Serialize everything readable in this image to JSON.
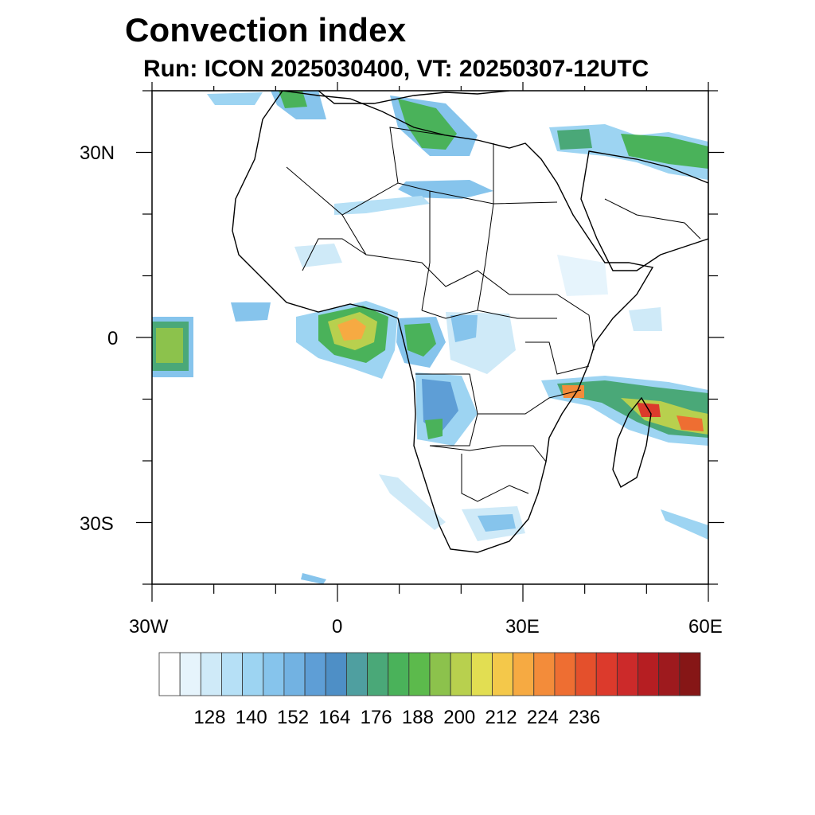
{
  "title": "Convection index",
  "subtitle": "Run: ICON 2025030400,  VT: 20250307-12UTC",
  "lat_labels": [
    "30N",
    "0",
    "30S"
  ],
  "lon_labels": [
    "30W",
    "0",
    "30E",
    "60E"
  ],
  "colorbar": {
    "labels": [
      "128",
      "140",
      "152",
      "164",
      "176",
      "188",
      "200",
      "212",
      "224",
      "236"
    ],
    "colors": [
      "#ffffff",
      "#e6f4fc",
      "#cfeaf8",
      "#b6e0f6",
      "#9dd4f2",
      "#86c4ec",
      "#72b2e2",
      "#5e9ed6",
      "#4e8fc6",
      "#4f9fa0",
      "#4aa878",
      "#4ab25a",
      "#5cba4c",
      "#8cc24c",
      "#b8d04e",
      "#e2de52",
      "#f4c84a",
      "#f6aa42",
      "#f38c3a",
      "#ee6e32",
      "#e4502c",
      "#dc3a2c",
      "#cc2a2a",
      "#b61e22",
      "#9e1a1e",
      "#861616"
    ]
  },
  "map": {
    "lon_range": [
      -30,
      60
    ],
    "lat_range": [
      -40,
      40
    ]
  }
}
